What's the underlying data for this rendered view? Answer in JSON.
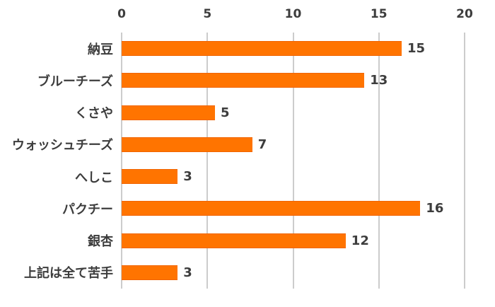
{
  "chart_data": {
    "type": "bar",
    "orientation": "horizontal",
    "title": "",
    "xlabel": "",
    "ylabel": "",
    "categories": [
      "納豆",
      "ブルーチーズ",
      "くさや",
      "ウォッシュチーズ",
      "へしこ",
      "パクチー",
      "銀杏",
      "上記は全て苦手"
    ],
    "values": [
      15,
      13,
      5,
      7,
      3,
      16,
      12,
      3
    ],
    "value_labels": [
      "15",
      "13",
      "5",
      "7",
      "3",
      "16",
      "12",
      "3"
    ],
    "xlim": [
      0,
      20
    ],
    "xticks": [
      0,
      5,
      10,
      15,
      20
    ],
    "grid": true,
    "legend": "none",
    "colors": {
      "bar": "#ff7400",
      "bar_border": "#f06400",
      "grid": "#cccccc",
      "text": "#3d3d3d",
      "background": "#ffffff"
    }
  }
}
